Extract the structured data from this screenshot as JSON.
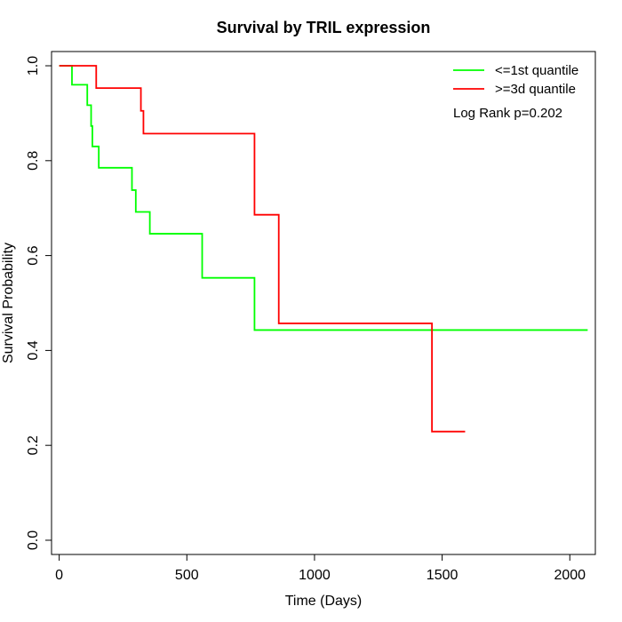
{
  "chart_data": {
    "type": "line",
    "title": "Survival by TRIL expression",
    "xlabel": "Time (Days)",
    "ylabel": "Survival Probability",
    "xlim": [
      -30,
      2100
    ],
    "ylim": [
      -0.03,
      1.03
    ],
    "x_ticks": [
      0,
      500,
      1000,
      1500,
      2000
    ],
    "x_tick_labels": [
      "0",
      "500",
      "1000",
      "1500",
      "2000"
    ],
    "y_ticks": [
      0.0,
      0.2,
      0.4,
      0.6,
      0.8,
      1.0
    ],
    "y_tick_labels": [
      "0.0",
      "0.2",
      "0.4",
      "0.6",
      "0.8",
      "1.0"
    ],
    "grid": false,
    "legend_position": "top-right",
    "annotation": "Log Rank p=0.202",
    "series": [
      {
        "name": "<=1st quantile",
        "color": "#00ff00",
        "steps": [
          [
            0,
            1.0
          ],
          [
            50,
            0.96
          ],
          [
            110,
            0.917
          ],
          [
            125,
            0.873
          ],
          [
            130,
            0.83
          ],
          [
            155,
            0.785
          ],
          [
            285,
            0.738
          ],
          [
            300,
            0.692
          ],
          [
            355,
            0.646
          ],
          [
            560,
            0.553
          ],
          [
            765,
            0.443
          ]
        ],
        "end": 2070
      },
      {
        "name": ">=3d quantile",
        "color": "#ff0000",
        "steps": [
          [
            0,
            1.0
          ],
          [
            145,
            0.953
          ],
          [
            320,
            0.905
          ],
          [
            330,
            0.857
          ],
          [
            765,
            0.686
          ],
          [
            860,
            0.457
          ],
          [
            1460,
            0.229
          ]
        ],
        "end": 1590
      }
    ]
  }
}
